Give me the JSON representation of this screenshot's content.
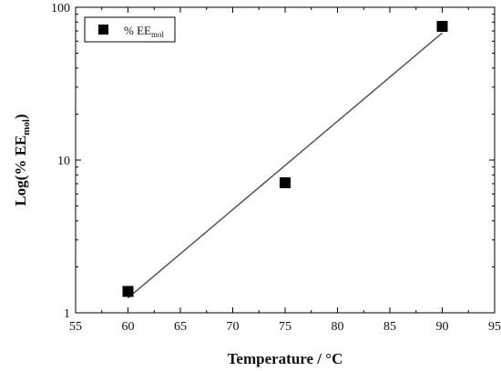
{
  "chart_data": {
    "type": "scatter",
    "xlabel": "Temperature / °C",
    "ylabel_main": "Log(% EE",
    "ylabel_sub": "mol",
    "ylabel_close": ")",
    "xlim": [
      55,
      95
    ],
    "ylim": [
      1,
      100
    ],
    "yscale": "log",
    "x_ticks": [
      55,
      60,
      65,
      70,
      75,
      80,
      85,
      90,
      95
    ],
    "x_tick_labels": [
      "55",
      "60",
      "65",
      "70",
      "75",
      "80",
      "85",
      "90",
      "95"
    ],
    "y_ticks": [
      1,
      10,
      100
    ],
    "y_tick_labels": [
      "1",
      "10",
      "100"
    ],
    "grid": false,
    "legend_position": "top-left",
    "series": [
      {
        "name_main": "% EE",
        "name_sub": "mol",
        "marker": "square",
        "color": "#000000",
        "x": [
          60,
          75,
          90
        ],
        "y": [
          1.38,
          7.1,
          75
        ]
      }
    ],
    "fit_line": {
      "color": "#555555",
      "x": [
        60,
        90
      ],
      "y": [
        1.25,
        68
      ]
    }
  }
}
